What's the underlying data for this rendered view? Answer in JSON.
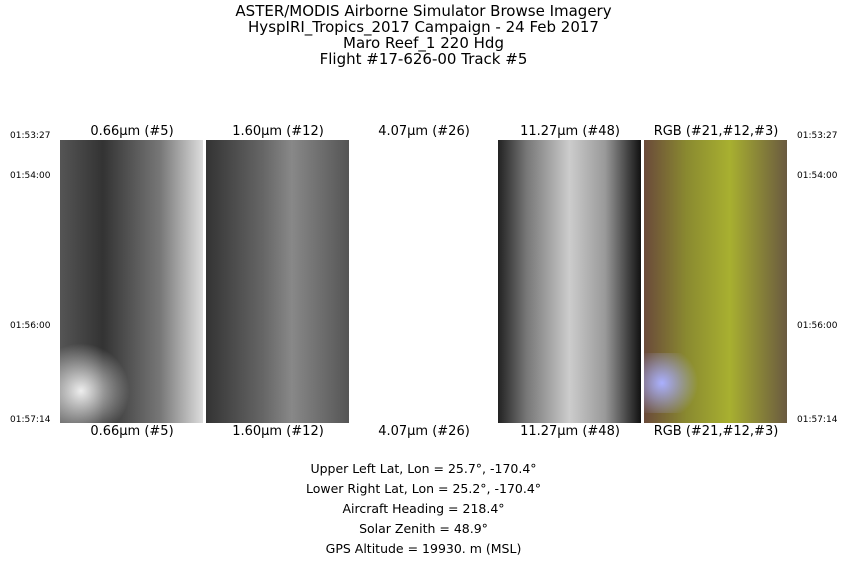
{
  "header": {
    "lines": [
      "ASTER/MODIS Airborne Simulator Browse Imagery",
      "HyspIRI_Tropics_2017 Campaign - 24 Feb 2017",
      "Maro Reef_1 220 Hdg",
      "Flight #17-626-00 Track #5"
    ]
  },
  "bands": [
    "0.66µm (#5)",
    "1.60µm (#12)",
    "4.07µm (#26)",
    "11.27µm (#48)",
    "RGB (#21,#12,#3)"
  ],
  "times": [
    "01:53:27",
    "01:54:00",
    "01:56:00",
    "01:57:14"
  ],
  "info": [
    "Upper Left Lat, Lon =   25.7°, -170.4°",
    "Lower Right Lat, Lon =   25.2°, -170.4°",
    "Aircraft Heading =  218.4°",
    "Solar Zenith =   48.9°",
    "GPS Altitude =  19930. m (MSL)"
  ]
}
